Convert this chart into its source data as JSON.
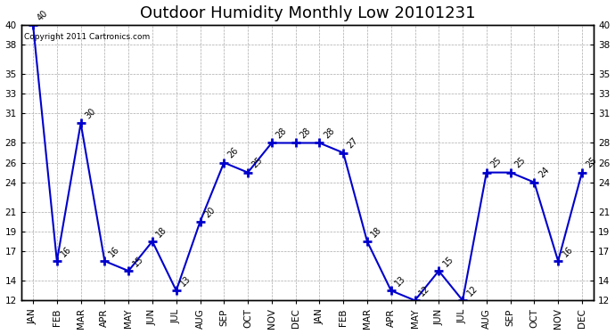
{
  "title": "Outdoor Humidity Monthly Low 20101231",
  "copyright": "Copyright 2011 Cartronics.com",
  "months": [
    "JAN",
    "FEB",
    "MAR",
    "APR",
    "MAY",
    "JUN",
    "JUL",
    "AUG",
    "SEP",
    "OCT",
    "NOV",
    "DEC",
    "JAN",
    "FEB",
    "MAR",
    "APR",
    "MAY",
    "JUN",
    "JUL",
    "AUG",
    "SEP",
    "OCT",
    "NOV",
    "DEC"
  ],
  "values": [
    40,
    16,
    30,
    16,
    15,
    18,
    13,
    20,
    26,
    25,
    28,
    28,
    28,
    27,
    18,
    13,
    12,
    15,
    12,
    25,
    25,
    24,
    16,
    25
  ],
  "ylim": [
    12,
    40
  ],
  "yticks": [
    12,
    14,
    17,
    19,
    21,
    24,
    26,
    28,
    31,
    33,
    35,
    38,
    40
  ],
  "line_color": "#0000cc",
  "bg_color": "#ffffff",
  "grid_color": "#aaaaaa",
  "title_fontsize": 13,
  "tick_fontsize": 7.5
}
